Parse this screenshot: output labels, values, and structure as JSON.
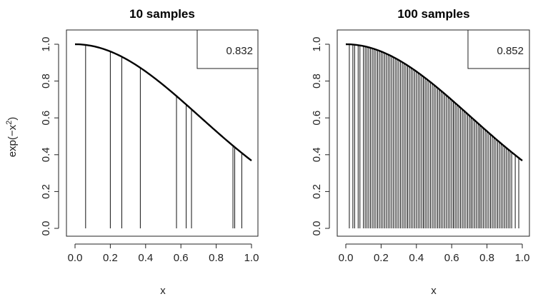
{
  "chart_data": [
    {
      "type": "line",
      "title": "10 samples",
      "xlabel": "x",
      "ylabel": "exp(−x²)",
      "xlim": [
        0,
        1
      ],
      "ylim": [
        0,
        1
      ],
      "x_ticks": [
        "0.0",
        "0.2",
        "0.4",
        "0.6",
        "0.8",
        "1.0"
      ],
      "y_ticks": [
        "0.0",
        "0.2",
        "0.4",
        "0.6",
        "0.8",
        "1.0"
      ],
      "curve": "exp(-x^2)",
      "estimate": "0.832",
      "sample_x": [
        0.06,
        0.2,
        0.265,
        0.37,
        0.575,
        0.63,
        0.66,
        0.895,
        0.905,
        0.945
      ]
    },
    {
      "type": "line",
      "title": "100 samples",
      "xlabel": "x",
      "ylabel": "",
      "xlim": [
        0,
        1
      ],
      "ylim": [
        0,
        1
      ],
      "x_ticks": [
        "0.0",
        "0.2",
        "0.4",
        "0.6",
        "0.8",
        "1.0"
      ],
      "y_ticks": [
        "0.0",
        "0.2",
        "0.4",
        "0.6",
        "0.8",
        "1.0"
      ],
      "curve": "exp(-x^2)",
      "estimate": "0.852",
      "sample_x": [
        0.02,
        0.04,
        0.05,
        0.07,
        0.08,
        0.1,
        0.11,
        0.13,
        0.15,
        0.16,
        0.18,
        0.2,
        0.21,
        0.22,
        0.24,
        0.25,
        0.27,
        0.28,
        0.3,
        0.31,
        0.33,
        0.34,
        0.35,
        0.36,
        0.38,
        0.39,
        0.4,
        0.41,
        0.42,
        0.43,
        0.44,
        0.45,
        0.46,
        0.47,
        0.48,
        0.49,
        0.5,
        0.51,
        0.52,
        0.53,
        0.54,
        0.55,
        0.56,
        0.57,
        0.58,
        0.59,
        0.6,
        0.61,
        0.62,
        0.63,
        0.64,
        0.65,
        0.66,
        0.67,
        0.68,
        0.69,
        0.7,
        0.71,
        0.72,
        0.73,
        0.74,
        0.75,
        0.76,
        0.77,
        0.78,
        0.79,
        0.8,
        0.81,
        0.82,
        0.83,
        0.84,
        0.85,
        0.86,
        0.87,
        0.88,
        0.89,
        0.9,
        0.91,
        0.92,
        0.93,
        0.94,
        0.96,
        0.98,
        0.23,
        0.26,
        0.29,
        0.32,
        0.37,
        0.12,
        0.14,
        0.17,
        0.19,
        0.35,
        0.44,
        0.53,
        0.61,
        0.66,
        0.71,
        0.76,
        0.82
      ]
    }
  ]
}
